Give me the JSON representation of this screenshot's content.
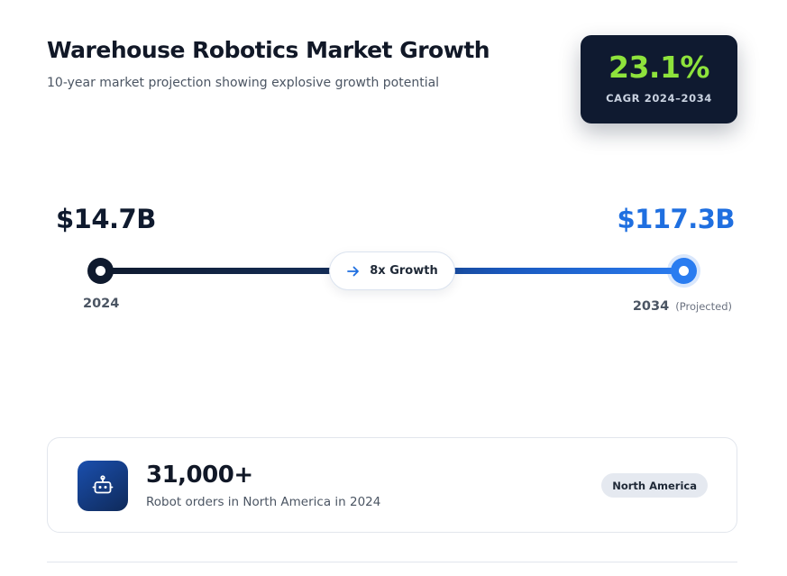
{
  "header": {
    "title": "Warehouse Robotics Market Growth",
    "subtitle": "10-year market projection showing explosive growth potential"
  },
  "cagr": {
    "value": "23.1%",
    "label": "CAGR 2024–2034",
    "value_color": "#8ee33c",
    "card_color": "#0f1a30"
  },
  "projection": {
    "start": {
      "value": "$14.7B",
      "year": "2024"
    },
    "end": {
      "value": "$117.3B",
      "year": "2034",
      "note": "(Projected)"
    },
    "growth_label": "8x Growth",
    "growth_icon": "arrow-right-icon",
    "start_color": "#0f1a2e",
    "end_color": "#1f6fe0"
  },
  "stat": {
    "icon": "robot-icon",
    "value": "31,000+",
    "description": "Robot orders in North America in 2024",
    "badge": "North America"
  }
}
